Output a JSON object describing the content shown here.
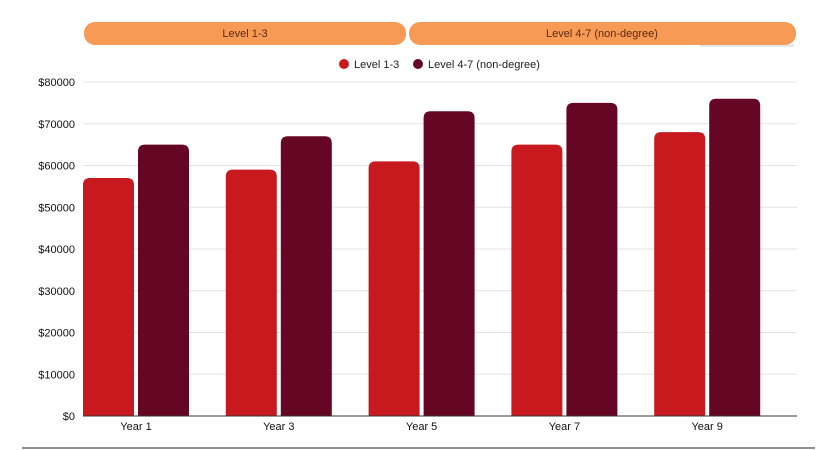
{
  "tabs": [
    {
      "label": "Level 1-3"
    },
    {
      "label": "Level 4-7 (non-degree)"
    }
  ],
  "colors": {
    "tab_fill": "#f79a55",
    "series_1": "#c8191f",
    "series_2": "#650624",
    "grid": "#e3e3e3",
    "axis": "#333333"
  },
  "chart_data": {
    "type": "bar",
    "title": "",
    "xlabel": "",
    "ylabel": "",
    "categories": [
      "Year 1",
      "Year 3",
      "Year 5",
      "Year 7",
      "Year 9"
    ],
    "series": [
      {
        "name": "Level 1-3",
        "values": [
          57000,
          59000,
          61000,
          65000,
          68000
        ]
      },
      {
        "name": "Level 4-7 (non-degree)",
        "values": [
          65000,
          67000,
          73000,
          75000,
          76000
        ]
      }
    ],
    "ylim": [
      0,
      80000
    ],
    "y_ticks": [
      "$0",
      "$10000",
      "$20000",
      "$30000",
      "$40000",
      "$50000",
      "$60000",
      "$70000",
      "$80000"
    ],
    "grid": true,
    "legend_position": "top-center"
  }
}
